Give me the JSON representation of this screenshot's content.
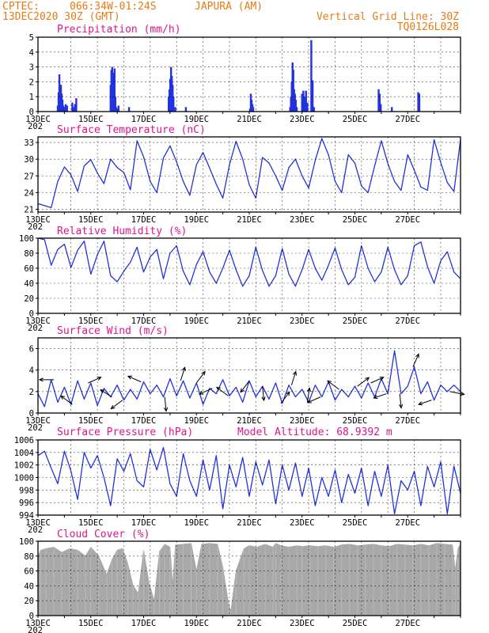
{
  "header": {
    "source": "CPTEC:",
    "coords": "066:34W-01:24S",
    "location": "JAPURA (AM)",
    "datetime": "13DEC2020 30Z (GMT)",
    "grid_note": "Vertical Grid Line: 30Z",
    "model_code": "TQ0126L028"
  },
  "colors": {
    "header": "#e87a14",
    "title": "#e0148c",
    "line": "#2233dd",
    "bar": "#2233dd",
    "cloud": "#a8a8a8"
  },
  "x_axis": {
    "day_ticks": [
      "13DEC",
      "15DEC",
      "17DEC",
      "19DEC",
      "21DEC",
      "23DEC",
      "25DEC",
      "27DEC"
    ],
    "year_fragment": "202"
  },
  "chart_data": [
    {
      "id": "precip",
      "type": "bar",
      "title": "Precipitation (mm/h)",
      "xlabel": "",
      "ylabel": "",
      "ylim": [
        0,
        5
      ],
      "yticks": [
        0,
        1,
        2,
        3,
        4,
        5
      ],
      "x_unit": "days since 13DEC 00Z",
      "x": [
        0.75,
        0.78,
        0.81,
        0.84,
        0.87,
        0.9,
        0.93,
        0.96,
        1.0,
        1.05,
        1.1,
        1.3,
        1.35,
        1.4,
        1.45,
        2.75,
        2.78,
        2.81,
        2.84,
        2.87,
        2.9,
        2.93,
        2.96,
        3.0,
        3.05,
        3.45,
        4.95,
        4.98,
        5.01,
        5.04,
        5.07,
        5.1,
        5.13,
        5.2,
        5.6,
        8.03,
        8.06,
        8.09,
        8.12,
        8.15,
        9.55,
        9.58,
        9.61,
        9.64,
        9.67,
        9.7,
        9.73,
        9.76,
        9.8,
        10.0,
        10.05,
        10.1,
        10.15,
        10.2,
        10.35,
        10.4,
        10.45,
        12.9,
        12.94,
        12.98,
        13.4,
        14.4,
        14.44
      ],
      "values": [
        0.4,
        1.3,
        2.5,
        1.5,
        1.8,
        1.2,
        0.8,
        0.4,
        0.3,
        0.5,
        0.4,
        0.6,
        0.3,
        0.5,
        0.9,
        1.8,
        2.8,
        3.0,
        2.6,
        2.0,
        2.9,
        1.0,
        0.3,
        0.2,
        0.4,
        0.3,
        1.0,
        1.5,
        2.2,
        3.0,
        2.4,
        1.8,
        1.0,
        0.3,
        0.3,
        0.2,
        1.2,
        0.8,
        0.5,
        0.3,
        0.3,
        1.0,
        2.0,
        3.3,
        2.8,
        1.5,
        1.2,
        0.8,
        0.3,
        1.2,
        1.4,
        1.0,
        1.4,
        0.6,
        4.8,
        2.1,
        0.3,
        1.5,
        1.2,
        0.5,
        0.3,
        1.3,
        1.2
      ]
    },
    {
      "id": "temp",
      "type": "line",
      "title": "Surface Temperature (nC)",
      "xlabel": "",
      "ylabel": "",
      "ylim": [
        20.5,
        34
      ],
      "yticks": [
        21,
        24,
        27,
        30,
        33
      ],
      "x_unit": "days since 13DEC 00Z",
      "x": [
        0,
        0.5,
        0.75,
        1.0,
        1.25,
        1.5,
        1.75,
        2.0,
        2.25,
        2.5,
        2.75,
        3.0,
        3.25,
        3.5,
        3.75,
        4.0,
        4.25,
        4.5,
        4.75,
        5.0,
        5.25,
        5.5,
        5.75,
        6.0,
        6.25,
        6.5,
        6.75,
        7.0,
        7.25,
        7.5,
        7.75,
        8.0,
        8.25,
        8.5,
        8.75,
        9.0,
        9.25,
        9.5,
        9.75,
        10.0,
        10.25,
        10.5,
        10.75,
        11.0,
        11.25,
        11.5,
        11.75,
        12.0,
        12.25,
        12.5,
        12.75,
        13.0,
        13.25,
        13.5,
        13.75,
        14.0,
        14.25,
        14.5,
        14.75,
        15.0,
        15.25,
        15.5,
        15.75,
        16.0
      ],
      "values": [
        22,
        21.3,
        26,
        28.6,
        27.2,
        24.2,
        28.8,
        29.9,
        27.5,
        25.6,
        30.0,
        28.5,
        27.6,
        24.5,
        33.3,
        30.4,
        26.0,
        24.0,
        30.2,
        32.4,
        29.5,
        26.0,
        23.5,
        29.0,
        31.2,
        28.4,
        25.5,
        23.0,
        29.0,
        33.2,
        30.0,
        25.4,
        23.0,
        30.3,
        29.3,
        27.0,
        24.4,
        28.5,
        30.0,
        27.0,
        24.8,
        29.8,
        33.7,
        30.8,
        26.0,
        24.0,
        30.8,
        29.3,
        25.2,
        24.0,
        28.8,
        33.3,
        29.2,
        26.0,
        24.4,
        30.8,
        28.0,
        25.0,
        24.4,
        33.5,
        29.4,
        25.8,
        24.2,
        33.5
      ]
    },
    {
      "id": "rh",
      "type": "line",
      "title": "Relative Humidity (%)",
      "xlabel": "",
      "ylabel": "",
      "ylim": [
        0,
        100
      ],
      "yticks": [
        0,
        20,
        40,
        60,
        80,
        100
      ],
      "x_unit": "days since 13DEC 00Z",
      "x": [
        0,
        0.25,
        0.5,
        0.75,
        1.0,
        1.25,
        1.5,
        1.75,
        2.0,
        2.25,
        2.5,
        2.75,
        3.0,
        3.25,
        3.5,
        3.75,
        4.0,
        4.25,
        4.5,
        4.75,
        5.0,
        5.25,
        5.5,
        5.75,
        6.0,
        6.25,
        6.5,
        6.75,
        7.0,
        7.25,
        7.5,
        7.75,
        8.0,
        8.25,
        8.5,
        8.75,
        9.0,
        9.25,
        9.5,
        9.75,
        10.0,
        10.25,
        10.5,
        10.75,
        11.0,
        11.25,
        11.5,
        11.75,
        12.0,
        12.25,
        12.5,
        12.75,
        13.0,
        13.25,
        13.5,
        13.75,
        14.0,
        14.25,
        14.5,
        14.75,
        15.0,
        15.25,
        15.5,
        15.75,
        16.0
      ],
      "values": [
        100,
        98,
        64,
        85,
        92,
        61,
        84,
        96,
        52,
        78,
        96,
        50,
        42,
        56,
        68,
        88,
        55,
        75,
        85,
        46,
        80,
        90,
        56,
        38,
        65,
        82,
        55,
        40,
        60,
        84,
        58,
        36,
        50,
        88,
        57,
        36,
        50,
        86,
        52,
        36,
        58,
        85,
        60,
        44,
        64,
        87,
        58,
        38,
        48,
        90,
        60,
        42,
        55,
        88,
        58,
        38,
        50,
        90,
        95,
        62,
        40,
        70,
        82,
        55,
        46
      ]
    },
    {
      "id": "wind",
      "type": "line",
      "title": "Surface Wind (m/s)",
      "xlabel": "",
      "ylabel": "",
      "ylim": [
        0,
        7
      ],
      "yticks": [
        0,
        2,
        4,
        6
      ],
      "x_unit": "days since 13DEC 00Z",
      "x": [
        0,
        0.25,
        0.5,
        0.75,
        1.0,
        1.25,
        1.5,
        1.75,
        2.0,
        2.25,
        2.5,
        2.75,
        3.0,
        3.25,
        3.5,
        3.75,
        4.0,
        4.25,
        4.5,
        4.75,
        5.0,
        5.25,
        5.5,
        5.75,
        6.0,
        6.25,
        6.5,
        6.75,
        7.0,
        7.25,
        7.5,
        7.75,
        8.0,
        8.25,
        8.5,
        8.75,
        9.0,
        9.25,
        9.5,
        9.75,
        10.0,
        10.25,
        10.5,
        10.75,
        11.0,
        11.25,
        11.5,
        11.75,
        12.0,
        12.25,
        12.5,
        12.75,
        13.0,
        13.25,
        13.5,
        13.75,
        14.0,
        14.25,
        14.5,
        14.75,
        15.0,
        15.25,
        15.5,
        15.75,
        16.0
      ],
      "values": [
        1.8,
        0.6,
        3.1,
        1.0,
        2.4,
        0.8,
        3.0,
        1.3,
        2.8,
        0.7,
        2.3,
        1.5,
        2.6,
        1.2,
        2.2,
        1.3,
        2.9,
        1.8,
        2.6,
        1.5,
        3.2,
        1.6,
        3.0,
        1.4,
        2.8,
        0.8,
        2.3,
        1.8,
        3.1,
        1.6,
        2.4,
        1.0,
        3.0,
        1.5,
        2.5,
        1.3,
        2.8,
        0.9,
        2.6,
        1.5,
        2.2,
        1.0,
        2.6,
        1.5,
        2.9,
        1.2,
        2.2,
        1.5,
        2.5,
        1.4,
        2.8,
        1.5,
        3.2,
        1.8,
        5.8,
        1.8,
        2.5,
        4.3,
        1.8,
        2.9,
        1.2,
        2.6,
        2.0,
        2.6,
        2.0
      ],
      "arrows": [
        {
          "t": 0.6,
          "dx": -1,
          "dy": 0
        },
        {
          "t": 1.3,
          "dx": -0.8,
          "dy": -0.6
        },
        {
          "t": 1.9,
          "dx": 0.9,
          "dy": -0.4
        },
        {
          "t": 2.8,
          "dx": -0.8,
          "dy": -0.5
        },
        {
          "t": 3.2,
          "dx": -0.8,
          "dy": 0.6
        },
        {
          "t": 3.9,
          "dx": -0.9,
          "dy": -0.4
        },
        {
          "t": 4.8,
          "dx": 0.1,
          "dy": 1
        },
        {
          "t": 5.4,
          "dx": 0.3,
          "dy": -0.95
        },
        {
          "t": 6.0,
          "dx": 0.6,
          "dy": -0.8
        },
        {
          "t": 6.6,
          "dx": -0.9,
          "dy": 0.4
        },
        {
          "t": 7.2,
          "dx": -0.8,
          "dy": -0.6
        },
        {
          "t": 8.0,
          "dx": -0.6,
          "dy": 0.8
        },
        {
          "t": 8.5,
          "dx": 0.1,
          "dy": 1
        },
        {
          "t": 9.2,
          "dx": 0.6,
          "dy": -0.8
        },
        {
          "t": 9.6,
          "dx": 0.3,
          "dy": -0.95
        },
        {
          "t": 10.2,
          "dx": 0.15,
          "dy": -1
        },
        {
          "t": 10.7,
          "dx": -0.9,
          "dy": 0.4
        },
        {
          "t": 11.4,
          "dx": -0.8,
          "dy": -0.6
        },
        {
          "t": 12.1,
          "dx": 0.8,
          "dy": -0.6
        },
        {
          "t": 12.6,
          "dx": 0.9,
          "dy": -0.4
        },
        {
          "t": 13.2,
          "dx": -0.9,
          "dy": 0.3
        },
        {
          "t": 13.7,
          "dx": 0.1,
          "dy": 1
        },
        {
          "t": 14.2,
          "dx": 0.4,
          "dy": -0.9
        },
        {
          "t": 14.9,
          "dx": -0.9,
          "dy": 0.3
        },
        {
          "t": 15.6,
          "dx": 1,
          "dy": 0.2
        }
      ]
    },
    {
      "id": "pres",
      "type": "line",
      "title": "Surface Pressure (hPa)",
      "annotation": "Model Altitude: 68.9392 m",
      "xlabel": "",
      "ylabel": "",
      "ylim": [
        994,
        1006
      ],
      "yticks": [
        994,
        996,
        998,
        1000,
        1002,
        1004,
        1006
      ],
      "x_unit": "days since 13DEC 00Z",
      "x": [
        0,
        0.25,
        0.5,
        0.75,
        1.0,
        1.25,
        1.5,
        1.75,
        2.0,
        2.25,
        2.5,
        2.75,
        3.0,
        3.25,
        3.5,
        3.75,
        4.0,
        4.25,
        4.5,
        4.75,
        5.0,
        5.25,
        5.5,
        5.75,
        6.0,
        6.25,
        6.5,
        6.75,
        7.0,
        7.25,
        7.5,
        7.75,
        8.0,
        8.25,
        8.5,
        8.75,
        9.0,
        9.25,
        9.5,
        9.75,
        10.0,
        10.25,
        10.5,
        10.75,
        11.0,
        11.25,
        11.5,
        11.75,
        12.0,
        12.25,
        12.5,
        12.75,
        13.0,
        13.25,
        13.5,
        13.75,
        14.0,
        14.25,
        14.5,
        14.75,
        15.0,
        15.25,
        15.5,
        15.75,
        16.0
      ],
      "values": [
        1003.5,
        1004.2,
        1001.5,
        999.0,
        1004.2,
        1001.0,
        996.5,
        1004.0,
        1001.5,
        1003.5,
        1000.0,
        995.5,
        1003.0,
        1001.0,
        1003.8,
        999.5,
        998.5,
        1004.5,
        1001.2,
        1004.8,
        999.0,
        997.0,
        1003.8,
        999.5,
        997.0,
        1002.8,
        998.0,
        1003.5,
        995.0,
        1002.0,
        998.5,
        1003.2,
        997.0,
        1002.5,
        998.8,
        1002.8,
        995.8,
        1002.0,
        998.0,
        1002.3,
        997.0,
        1001.5,
        995.5,
        1000.0,
        997.0,
        1001.2,
        996.0,
        1000.5,
        997.5,
        1001.5,
        995.5,
        1001.0,
        997.0,
        1002.0,
        994.2,
        999.5,
        998.0,
        1001.0,
        995.5,
        1001.8,
        998.5,
        1002.5,
        994.2,
        1001.8,
        997.5
      ]
    },
    {
      "id": "cloud",
      "type": "area",
      "title": "Cloud Cover (%)",
      "xlabel": "",
      "ylabel": "",
      "ylim": [
        0,
        100
      ],
      "yticks": [
        0,
        20,
        40,
        60,
        80,
        100
      ],
      "x_unit": "days since 13DEC 00Z",
      "x": [
        0,
        0.1,
        0.3,
        0.6,
        0.9,
        1.2,
        1.5,
        1.8,
        2.0,
        2.3,
        2.6,
        2.8,
        3.0,
        3.2,
        3.4,
        3.6,
        3.8,
        4.0,
        4.2,
        4.4,
        4.6,
        4.8,
        5.0,
        5.1,
        5.2,
        5.5,
        5.8,
        6.0,
        6.2,
        6.5,
        6.8,
        7.0,
        7.2,
        7.3,
        7.5,
        7.8,
        8.0,
        8.3,
        8.6,
        8.9,
        9.0,
        9.2,
        9.5,
        9.8,
        10.0,
        10.3,
        10.6,
        10.9,
        11.2,
        11.5,
        11.8,
        12.1,
        12.4,
        12.7,
        13.0,
        13.3,
        13.6,
        13.9,
        14.2,
        14.5,
        14.8,
        15.1,
        15.4,
        15.7,
        15.8,
        15.9,
        16.0
      ],
      "values": [
        80,
        88,
        90,
        92,
        85,
        90,
        88,
        80,
        92,
        80,
        55,
        75,
        88,
        90,
        70,
        40,
        30,
        88,
        45,
        20,
        86,
        96,
        92,
        40,
        95,
        96,
        97,
        60,
        96,
        97,
        96,
        65,
        20,
        5,
        60,
        90,
        94,
        92,
        96,
        92,
        97,
        94,
        92,
        94,
        93,
        94,
        93,
        94,
        92,
        95,
        96,
        94,
        95,
        96,
        94,
        93,
        96,
        95,
        94,
        96,
        94,
        97,
        96,
        95,
        60,
        90,
        96
      ]
    }
  ]
}
